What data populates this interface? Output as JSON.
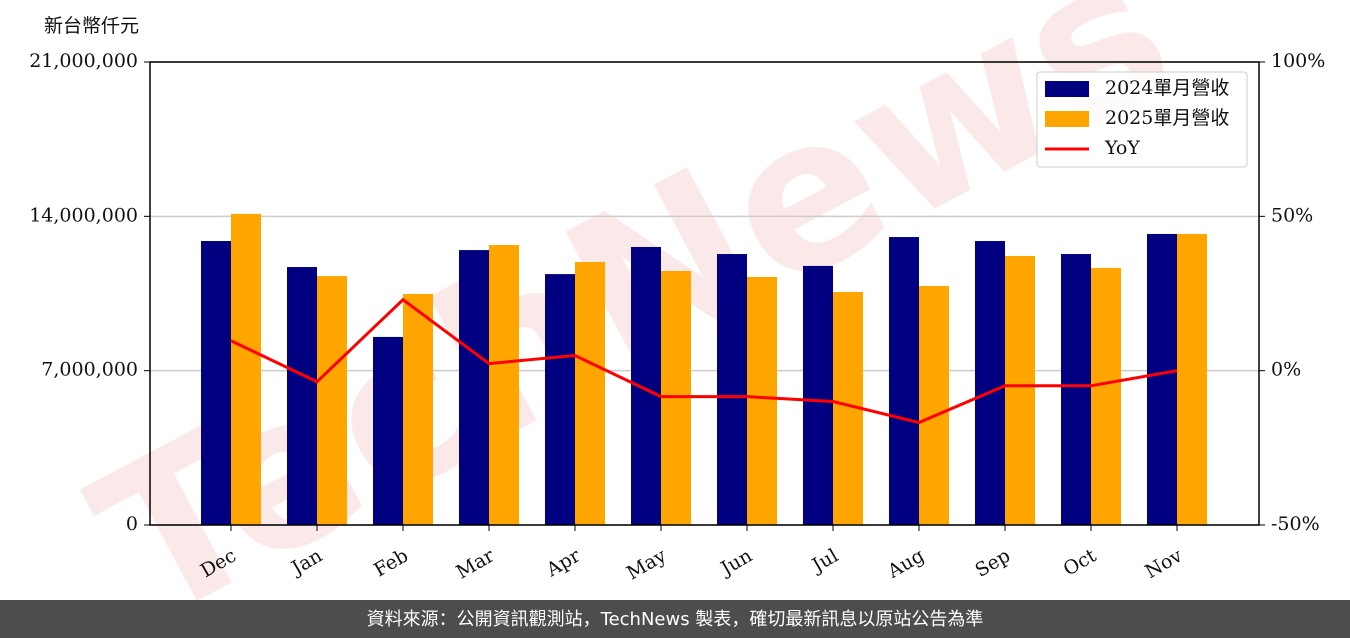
{
  "chart_data": {
    "type": "bar",
    "y_label": "新台幣仟元",
    "watermark": "TechNews",
    "categories": [
      "Dec",
      "Jan",
      "Feb",
      "Mar",
      "Apr",
      "May",
      "Jun",
      "Jul",
      "Aug",
      "Sep",
      "Oct",
      "Nov"
    ],
    "series": [
      {
        "name": "2024單月營收",
        "color": "#000080",
        "values": [
          12880000,
          11700000,
          8530000,
          12470000,
          11380000,
          12610000,
          12290000,
          11750000,
          13060000,
          12880000,
          12290000,
          13200000
        ]
      },
      {
        "name": "2025單月營收",
        "color": "#ffa500",
        "values": [
          14110000,
          11290000,
          10480000,
          12700000,
          11930000,
          11520000,
          11250000,
          10570000,
          10840000,
          12200000,
          11660000,
          13200000
        ]
      },
      {
        "name": "YoY",
        "type": "line",
        "axis": "y2",
        "color": "#ff0000",
        "values": [
          9.7,
          -3.6,
          23,
          2.3,
          4.9,
          -8.4,
          -8.4,
          -10,
          -16.8,
          -4.9,
          -4.9,
          0
        ]
      }
    ],
    "ylim": [
      0,
      21000000
    ],
    "yticks": [
      0,
      {
        "value": 7000000,
        "label": "7,000,000"
      },
      {
        "value": 14000000,
        "label": "14,000,000"
      },
      {
        "value": 21000000,
        "label": "21,000,000"
      }
    ],
    "y2lim": [
      -50,
      100
    ],
    "y2ticks": [
      {
        "value": -50,
        "label": "-50%"
      },
      {
        "value": 0,
        "label": "0%"
      },
      {
        "value": 50,
        "label": "50%"
      },
      {
        "value": 100,
        "label": "100%"
      }
    ],
    "grid": true,
    "legend": "upper right"
  },
  "footer": "資料來源：公開資訊觀測站，TechNews 製表，確切最新訊息以原站公告為準"
}
